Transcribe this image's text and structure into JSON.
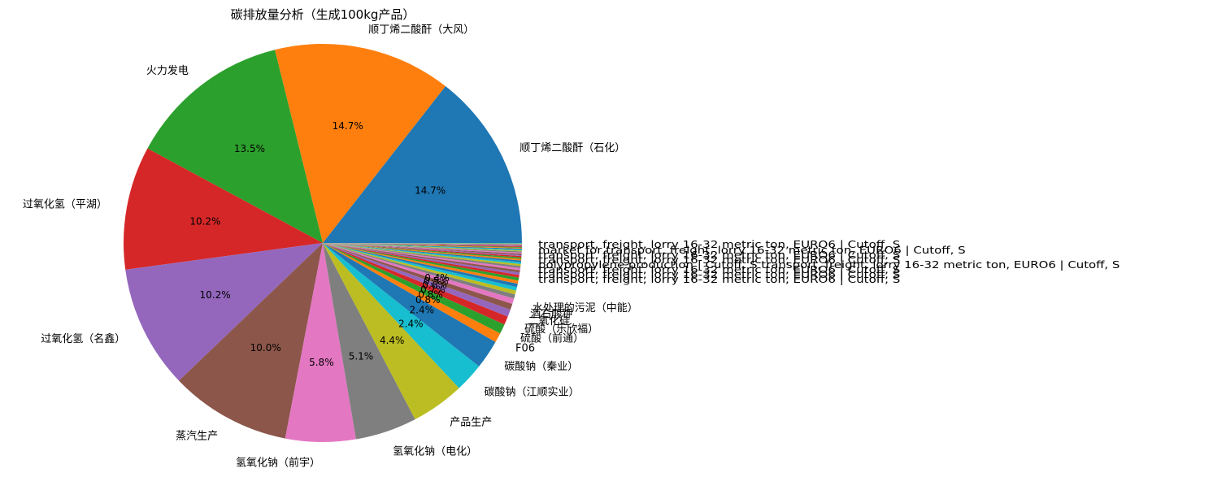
{
  "chart_data": {
    "type": "pie",
    "title": "碳排放量分析（生成100kg产品）",
    "slices": [
      {
        "label": "顺丁烯二酸酐（石化）",
        "value": 14.7,
        "pct_label": "14.7%",
        "color": "#1f77b4"
      },
      {
        "label": "顺丁烯二酸酐（大风）",
        "value": 14.7,
        "pct_label": "14.7%",
        "color": "#ff7f0e"
      },
      {
        "label": "火力发电",
        "value": 13.5,
        "pct_label": "13.5%",
        "color": "#2ca02c"
      },
      {
        "label": "过氧化氢（平湖）",
        "value": 10.2,
        "pct_label": "10.2%",
        "color": "#d62728"
      },
      {
        "label": "过氧化氢（名鑫）",
        "value": 10.2,
        "pct_label": "10.2%",
        "color": "#9467bd"
      },
      {
        "label": "蒸汽生产",
        "value": 10.0,
        "pct_label": "10.0%",
        "color": "#8c564b"
      },
      {
        "label": "氢氧化钠（前宇）",
        "value": 5.8,
        "pct_label": "5.8%",
        "color": "#e377c2"
      },
      {
        "label": "氢氧化钠（电化）",
        "value": 5.1,
        "pct_label": "5.1%",
        "color": "#7f7f7f"
      },
      {
        "label": "产品生产",
        "value": 4.4,
        "pct_label": "4.4%",
        "color": "#bcbd22"
      },
      {
        "label": "碳酸钠（江顺实业）",
        "value": 2.4,
        "pct_label": "2.4%",
        "color": "#17becf"
      },
      {
        "label": "碳酸钠（秦业）",
        "value": 2.4,
        "pct_label": "2.4%",
        "color": "#1f77b4"
      },
      {
        "label": "F06",
        "value": 0.8,
        "pct_label": "0.8%",
        "color": "#ff7f0e"
      },
      {
        "label": "硫酸（前通）",
        "value": 0.8,
        "pct_label": "0.8%",
        "color": "#2ca02c"
      },
      {
        "label": "硫酸（乐欣福）",
        "value": 0.7,
        "pct_label": "0.7%",
        "color": "#d62728"
      },
      {
        "label": "二氧化硅",
        "value": 0.6,
        "pct_label": "0.6%",
        "color": "#9467bd"
      },
      {
        "label": "酒石酸钾",
        "value": 0.5,
        "pct_label": "0.5%",
        "color": "#8c564b"
      },
      {
        "label": "水处理的污泥（中能）",
        "value": 0.45,
        "pct_label": "0.4%",
        "color": "#e377c2"
      },
      {
        "label": "",
        "value": 0.35,
        "pct_label": "",
        "color": "#7f7f7f"
      },
      {
        "label": "",
        "value": 0.32,
        "pct_label": "",
        "color": "#bcbd22"
      },
      {
        "label": "",
        "value": 0.3,
        "pct_label": "",
        "color": "#17becf"
      },
      {
        "label": "",
        "value": 0.28,
        "pct_label": "",
        "color": "#1f77b4"
      },
      {
        "label": "",
        "value": 0.26,
        "pct_label": "",
        "color": "#ff7f0e"
      },
      {
        "label": "",
        "value": 0.24,
        "pct_label": "",
        "color": "#2ca02c"
      },
      {
        "label": "",
        "value": 0.22,
        "pct_label": "",
        "color": "#d62728"
      },
      {
        "label": "",
        "value": 0.2,
        "pct_label": "",
        "color": "#9467bd"
      },
      {
        "label": "",
        "value": 0.19,
        "pct_label": "",
        "color": "#8c564b"
      },
      {
        "label": "",
        "value": 0.18,
        "pct_label": "",
        "color": "#e377c2"
      },
      {
        "label": "",
        "value": 0.17,
        "pct_label": "",
        "color": "#7f7f7f"
      },
      {
        "label": "",
        "value": 0.16,
        "pct_label": "",
        "color": "#bcbd22"
      },
      {
        "label": "",
        "value": 0.15,
        "pct_label": "",
        "color": "#17becf"
      },
      {
        "label": "",
        "value": 0.14,
        "pct_label": "",
        "color": "#1f77b4"
      },
      {
        "label": "",
        "value": 0.13,
        "pct_label": "",
        "color": "#ff7f0e"
      },
      {
        "label": "",
        "value": 0.12,
        "pct_label": "",
        "color": "#2ca02c"
      },
      {
        "label": "",
        "value": 0.11,
        "pct_label": "",
        "color": "#d62728"
      },
      {
        "label": "",
        "value": 0.1,
        "pct_label": "",
        "color": "#9467bd"
      },
      {
        "label": "",
        "value": 0.1,
        "pct_label": "",
        "color": "#8c564b"
      },
      {
        "label": "",
        "value": 0.09,
        "pct_label": "",
        "color": "#e377c2"
      },
      {
        "label": "",
        "value": 0.09,
        "pct_label": "",
        "color": "#7f7f7f"
      },
      {
        "label": "",
        "value": 0.08,
        "pct_label": "",
        "color": "#bcbd22"
      },
      {
        "label": "",
        "value": 0.08,
        "pct_label": "",
        "color": "#17becf"
      },
      {
        "label": "",
        "value": 0.07,
        "pct_label": "",
        "color": "#1f77b4"
      },
      {
        "label": "",
        "value": 0.07,
        "pct_label": "",
        "color": "#ff7f0e"
      },
      {
        "label": "",
        "value": 0.06,
        "pct_label": "",
        "color": "#2ca02c"
      },
      {
        "label": "",
        "value": 0.06,
        "pct_label": "",
        "color": "#d62728"
      },
      {
        "label": "",
        "value": 0.05,
        "pct_label": "",
        "color": "#9467bd"
      },
      {
        "label": "",
        "value": 0.05,
        "pct_label": "",
        "color": "#8c564b"
      },
      {
        "label": "",
        "value": 0.05,
        "pct_label": "",
        "color": "#e377c2"
      },
      {
        "label": "",
        "value": 0.04,
        "pct_label": "",
        "color": "#7f7f7f"
      },
      {
        "label": "",
        "value": 0.04,
        "pct_label": "",
        "color": "#bcbd22"
      },
      {
        "label": "",
        "value": 0.04,
        "pct_label": "",
        "color": "#17becf"
      }
    ],
    "overlapping_small_labels": [
      "transport, freight, lorry 16-32 metric ton, EURO6 | Cutoff, S",
      "market for transport, freight, lorry 16-32 metric ton, EURO6 | Cutoff, S",
      "transport, freight, lorry 16-32 metric ton, EURO6 | Cutoff, S",
      "transport, freight, lorry 16-32 metric ton, EURO6 | Cutoff, S",
      "polypropylene production | Cutoff, S transport, freight, lorry 16-32 metric ton, EURO6 | Cutoff, S",
      "transport, freight, lorry 16-32 metric ton, EURO6 | Cutoff, S",
      "transport, freight, lorry 16-32 metric ton, EURO6 | Cutoff, S",
      "transport, freight, lorry 16-32 metric ton, EURO6 | Cutoff, S"
    ],
    "start_angle_deg": 0,
    "direction": "counterclockwise"
  }
}
